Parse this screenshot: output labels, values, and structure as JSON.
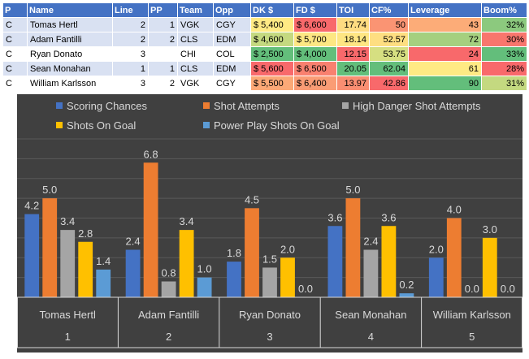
{
  "table": {
    "headers": [
      "P",
      "Name",
      "Line",
      "PP",
      "Team",
      "Opp",
      "DK $",
      "FD $",
      "TOI",
      "CF%",
      "Leverage",
      "Boom%"
    ],
    "rows": [
      {
        "P": "C",
        "Name": "Tomas Hertl",
        "Line": "2",
        "PP": "1",
        "Team": "VGK",
        "Opp": "CGY",
        "DK": "$ 5,400",
        "FD": "$ 6,600",
        "TOI": "17.74",
        "CF": "50",
        "Leverage": "43",
        "Boom": "32%",
        "colors": {
          "DK": "#ffea84",
          "FD": "#f8696b",
          "TOI": "#fedb81",
          "CF": "#fa9473",
          "Leverage": "#fcac78",
          "Boom": "#8cc97e"
        }
      },
      {
        "P": "C",
        "Name": "Adam Fantilli",
        "Line": "2",
        "PP": "2",
        "Team": "CLS",
        "Opp": "EDM",
        "DK": "$ 4,600",
        "FD": "$ 5,700",
        "TOI": "18.14",
        "CF": "52.57",
        "Leverage": "72",
        "Boom": "30%",
        "colors": {
          "DK": "#c4d980",
          "FD": "#fde783",
          "TOI": "#fee683",
          "CF": "#fede81",
          "Leverage": "#a5d07f",
          "Boom": "#f8766d"
        }
      },
      {
        "P": "C",
        "Name": "Ryan Donato",
        "Line": "3",
        "PP": "",
        "Team": "CHI",
        "Opp": "COL",
        "DK": "$ 2,500",
        "FD": "$ 4,000",
        "TOI": "12.15",
        "CF": "53.75",
        "Leverage": "24",
        "Boom": "33%",
        "colors": {
          "DK": "#63be7b",
          "FD": "#63be7b",
          "TOI": "#f8696b",
          "CF": "#d6df81",
          "Leverage": "#f8696b",
          "Boom": "#63be7b"
        }
      },
      {
        "P": "C",
        "Name": "Sean Monahan",
        "Line": "1",
        "PP": "1",
        "Team": "CLS",
        "Opp": "EDM",
        "DK": "$ 5,600",
        "FD": "$ 6,500",
        "TOI": "20.05",
        "CF": "62.04",
        "Leverage": "61",
        "Boom": "28%",
        "colors": {
          "DK": "#f8696b",
          "FD": "#f9806f",
          "TOI": "#63be7b",
          "CF": "#63be7b",
          "Leverage": "#ffea84",
          "Boom": "#f8696b"
        }
      },
      {
        "P": "C",
        "Name": "William Karlsson",
        "Line": "3",
        "PP": "2",
        "Team": "VGK",
        "Opp": "CGY",
        "DK": "$ 5,500",
        "FD": "$ 6,400",
        "TOI": "13.97",
        "CF": "42.86",
        "Leverage": "90",
        "Boom": "31%",
        "colors": {
          "DK": "#fba977",
          "FD": "#fa9c75",
          "TOI": "#f98e72",
          "CF": "#f8696b",
          "Leverage": "#63be7b",
          "Boom": "#c4d980"
        }
      }
    ]
  },
  "chart_data": {
    "type": "bar",
    "title": "",
    "xlabel": "",
    "ylabel": "",
    "ylim": [
      0,
      8
    ],
    "grid": true,
    "legend_position": "top",
    "categories": [
      "Tomas Hertl",
      "Adam Fantilli",
      "Ryan Donato",
      "Sean Monahan",
      "William Karlsson"
    ],
    "category_numbers": [
      "1",
      "2",
      "3",
      "4",
      "5"
    ],
    "series": [
      {
        "name": "Scoring Chances",
        "color": "#4472c4",
        "values": [
          4.2,
          2.4,
          1.8,
          3.6,
          2.0
        ]
      },
      {
        "name": "Shot Attempts",
        "color": "#ed7d31",
        "values": [
          5.0,
          6.8,
          4.5,
          5.0,
          4.0
        ]
      },
      {
        "name": "High Danger Shot Attempts",
        "color": "#a5a5a5",
        "values": [
          3.4,
          0.8,
          1.5,
          2.4,
          0.0
        ]
      },
      {
        "name": "Shots On Goal",
        "color": "#ffc000",
        "values": [
          2.8,
          3.4,
          2.0,
          3.6,
          3.0
        ]
      },
      {
        "name": "Power Play Shots On Goal",
        "color": "#5b9bd5",
        "values": [
          1.4,
          1.0,
          0.0,
          0.2,
          0.0
        ]
      }
    ]
  },
  "theme": {
    "chart_background": "#404040",
    "text_color": "#d9d9d9",
    "gridline_color": "#595959"
  }
}
